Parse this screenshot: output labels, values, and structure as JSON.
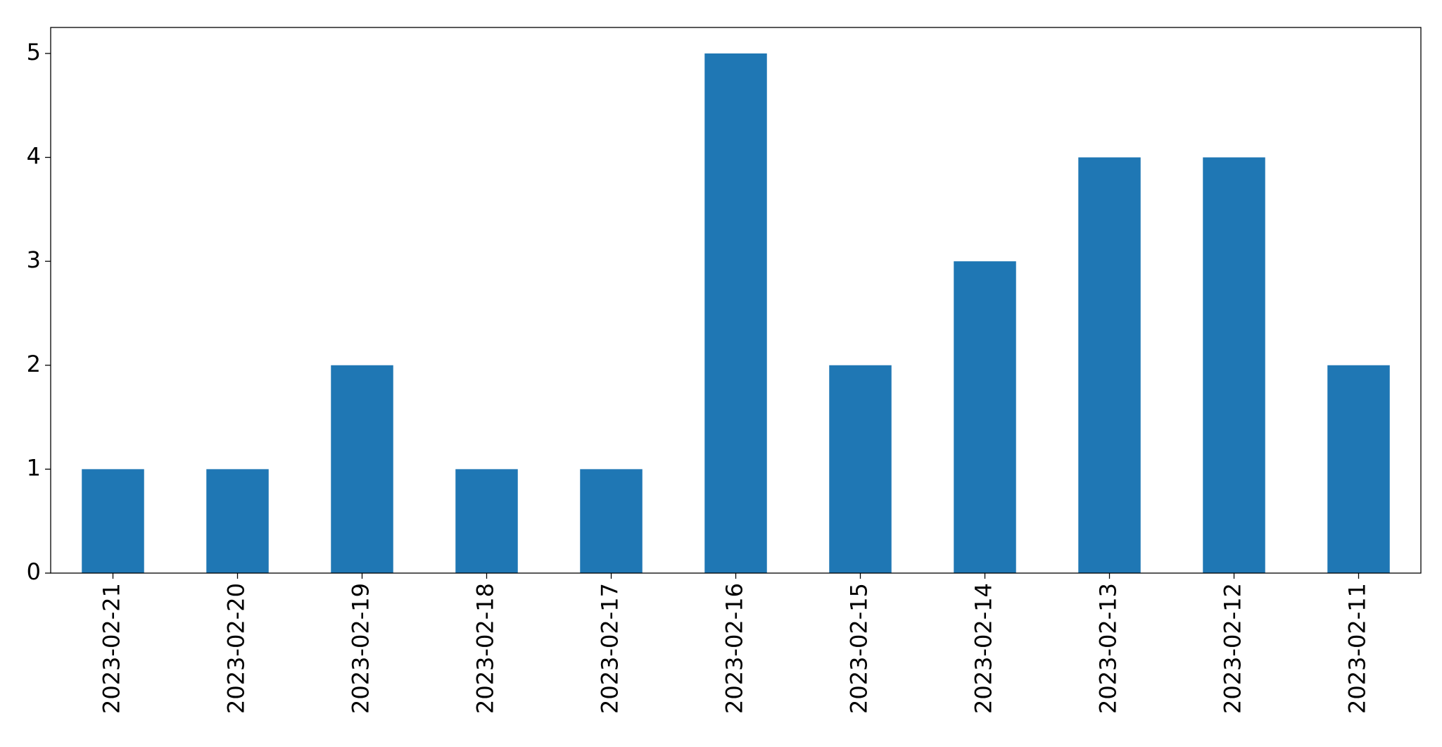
{
  "chart_data": {
    "type": "bar",
    "categories": [
      "2023-02-21",
      "2023-02-20",
      "2023-02-19",
      "2023-02-18",
      "2023-02-17",
      "2023-02-16",
      "2023-02-15",
      "2023-02-14",
      "2023-02-13",
      "2023-02-12",
      "2023-02-11"
    ],
    "values": [
      1,
      1,
      2,
      1,
      1,
      5,
      2,
      3,
      4,
      4,
      2
    ],
    "color": "#1f77b4",
    "ylim": [
      0,
      5.25
    ],
    "yticks": [
      0,
      1,
      2,
      3,
      4,
      5
    ],
    "grid": false
  }
}
